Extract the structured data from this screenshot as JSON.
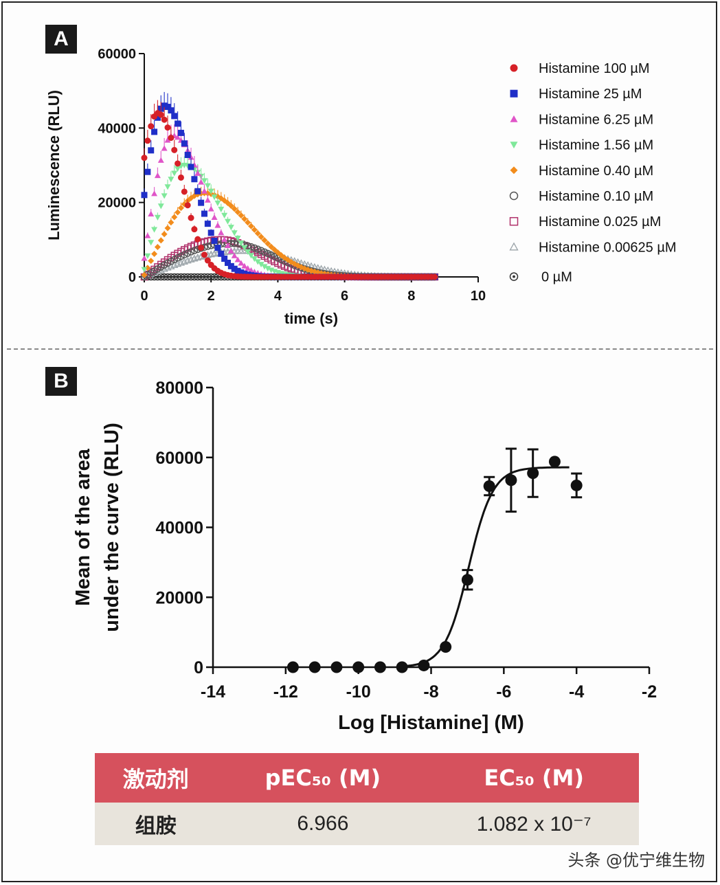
{
  "chart_data": [
    {
      "panel": "A",
      "type": "scatter",
      "xlabel": "time (s)",
      "ylabel": "Luminescence (RLU)",
      "xlim": [
        0,
        10
      ],
      "ylim": [
        0,
        60000
      ],
      "xticks": [
        0,
        2,
        4,
        6,
        8,
        10
      ],
      "yticks": [
        0,
        20000,
        40000,
        60000
      ],
      "legend_position": "right",
      "series": [
        {
          "name": "Histamine 100 µM",
          "marker": "circle",
          "color": "#d62027",
          "peak_x": 0.4,
          "peak_y": 44000,
          "start_y": 32000,
          "rise": 0.25,
          "decay": 0.7
        },
        {
          "name": "Histamine 25 µM",
          "marker": "square",
          "color": "#1f2fc8",
          "peak_x": 0.6,
          "peak_y": 46000,
          "start_y": 22000,
          "rise": 0.35,
          "decay": 0.85
        },
        {
          "name": "Histamine 6.25 µM",
          "marker": "triangle",
          "color": "#e055c8",
          "peak_x": 0.85,
          "peak_y": 38000,
          "start_y": 5000,
          "rise": 0.45,
          "decay": 0.95
        },
        {
          "name": "Histamine 1.56 µM",
          "marker": "triangle-down",
          "color": "#7fe89a",
          "peak_x": 1.2,
          "peak_y": 30000,
          "start_y": 2000,
          "rise": 0.6,
          "decay": 1.1
        },
        {
          "name": "Histamine 0.40 µM",
          "marker": "diamond",
          "color": "#f28c1c",
          "peak_x": 1.8,
          "peak_y": 22500,
          "start_y": 500,
          "rise": 0.9,
          "decay": 1.4
        },
        {
          "name": "Histamine 0.10 µM",
          "marker": "circle-open",
          "color": "#555555",
          "peak_x": 2.6,
          "peak_y": 9000,
          "start_y": 0,
          "rise": 1.0,
          "decay": 1.3
        },
        {
          "name": "Histamine 0.025 µM",
          "marker": "square-open",
          "color": "#b0306a",
          "peak_x": 2.3,
          "peak_y": 10000,
          "start_y": 0,
          "rise": 1.0,
          "decay": 1.2
        },
        {
          "name": "Histamine 0.00625 µM",
          "marker": "triangle-open",
          "color": "#9aa3a8",
          "peak_x": 3.0,
          "peak_y": 7000,
          "start_y": 0,
          "rise": 1.2,
          "decay": 1.5
        },
        {
          "name": "0 µM",
          "marker": "circle-dot",
          "color": "#333333",
          "peak_x": 0,
          "peak_y": 0,
          "start_y": 0,
          "rise": 1,
          "decay": 1
        }
      ]
    },
    {
      "panel": "B",
      "type": "scatter",
      "xlabel": "Log [Histamine] (M)",
      "ylabel": [
        "Mean of the area",
        "under the curve (RLU)"
      ],
      "xlim": [
        -14,
        -2
      ],
      "ylim": [
        0,
        80000
      ],
      "xticks": [
        -14,
        -12,
        -10,
        -8,
        -6,
        -4,
        -2
      ],
      "yticks": [
        0,
        20000,
        40000,
        60000,
        80000
      ],
      "points": [
        {
          "x": -11.8,
          "y": 0,
          "err": 0
        },
        {
          "x": -11.2,
          "y": 0,
          "err": 0
        },
        {
          "x": -10.6,
          "y": 0,
          "err": 0
        },
        {
          "x": -10.0,
          "y": 0,
          "err": 0
        },
        {
          "x": -9.4,
          "y": 0,
          "err": 0
        },
        {
          "x": -8.8,
          "y": 0,
          "err": 0
        },
        {
          "x": -8.2,
          "y": 500,
          "err": 0
        },
        {
          "x": -7.6,
          "y": 5800,
          "err": 0
        },
        {
          "x": -7.0,
          "y": 25000,
          "err": 2800
        },
        {
          "x": -6.4,
          "y": 51800,
          "err": 2600
        },
        {
          "x": -5.8,
          "y": 53500,
          "err": 9000
        },
        {
          "x": -5.2,
          "y": 55500,
          "err": 6800
        },
        {
          "x": -4.6,
          "y": 58800,
          "err": 0
        },
        {
          "x": -4.0,
          "y": 52000,
          "err": 3400
        }
      ],
      "fit": {
        "bottom": 0,
        "top": 57200,
        "logEC50": -6.966,
        "hill": 1.3
      }
    }
  ],
  "panels": {
    "a_label": "A",
    "b_label": "B"
  },
  "table": {
    "headers": [
      "激动剂",
      "pEC₅₀ (M)",
      "EC₅₀ (M)"
    ],
    "rows": [
      [
        "组胺",
        "6.966",
        "1.082 x 10⁻⁷"
      ]
    ]
  },
  "watermark": "头条 @优宁维生物"
}
